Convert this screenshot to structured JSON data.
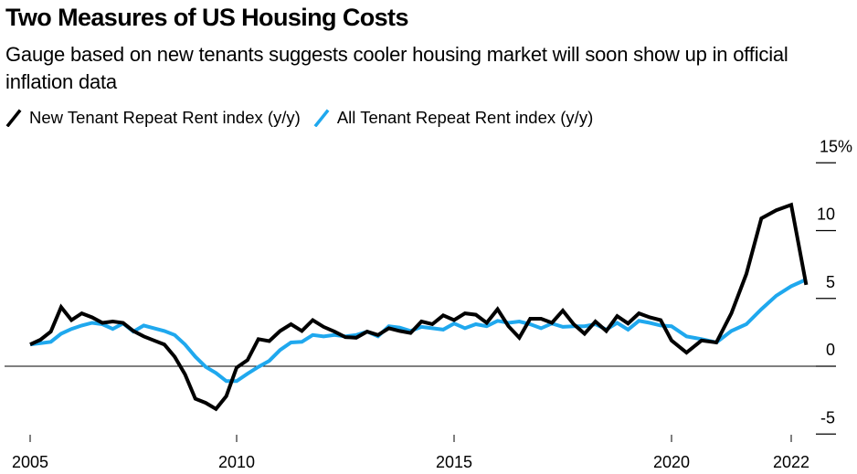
{
  "title": "Two Measures of US Housing Costs",
  "subtitle": "Gauge based on new tenants suggests cooler housing market will soon show up in official inflation data",
  "chart_data": {
    "type": "line",
    "title": "Two Measures of US Housing Costs",
    "subtitle": "Gauge based on new tenants suggests cooler housing market will soon show up in official inflation data",
    "xlabel": "",
    "ylabel": "",
    "x_ticks": [
      2005,
      2010,
      2015,
      2020,
      2022
    ],
    "x_tick_labels": [
      "2005",
      "2010",
      "2015",
      "2020",
      "2022"
    ],
    "y_ticks": [
      15,
      10,
      5,
      0,
      -5
    ],
    "y_tick_labels": [
      "15%",
      "10",
      "5",
      "0",
      "-5"
    ],
    "ylim": [
      -5,
      15
    ],
    "xlim": [
      2005,
      2022.25
    ],
    "y_axis_side": "right",
    "grid": false,
    "zero_line": true,
    "legend_position": "top-left",
    "x": [
      2005.0,
      2005.25,
      2005.5,
      2005.75,
      2006.0,
      2006.25,
      2006.5,
      2006.75,
      2007.0,
      2007.25,
      2007.5,
      2007.75,
      2008.0,
      2008.25,
      2008.5,
      2008.75,
      2009.0,
      2009.25,
      2009.5,
      2009.75,
      2010.0,
      2010.25,
      2010.5,
      2010.75,
      2011.0,
      2011.25,
      2011.5,
      2011.75,
      2012.0,
      2012.25,
      2012.5,
      2012.75,
      2013.0,
      2013.25,
      2013.5,
      2013.75,
      2014.0,
      2014.25,
      2014.5,
      2014.75,
      2015.0,
      2015.25,
      2015.5,
      2015.75,
      2016.0,
      2016.25,
      2016.5,
      2016.75,
      2017.0,
      2017.25,
      2017.5,
      2017.75,
      2018.0,
      2018.25,
      2018.5,
      2018.75,
      2019.0,
      2019.25,
      2019.5,
      2019.75,
      2020.0,
      2020.25,
      2020.5,
      2020.75,
      2021.0,
      2021.25,
      2021.5,
      2021.75,
      2022.0,
      2022.25
    ],
    "series": [
      {
        "name": "New Tenant Repeat Rent index (y/y)",
        "color": "#000000",
        "values": [
          1.6,
          1.95,
          2.55,
          4.36,
          3.4,
          3.9,
          3.6,
          3.2,
          3.3,
          3.2,
          2.6,
          2.2,
          1.9,
          1.6,
          0.7,
          -0.6,
          -2.4,
          -2.7,
          -3.15,
          -2.2,
          -0.1,
          0.45,
          2.0,
          1.85,
          2.6,
          3.1,
          2.6,
          3.4,
          2.9,
          2.55,
          2.15,
          2.1,
          2.55,
          2.3,
          2.8,
          2.6,
          2.45,
          3.3,
          3.1,
          3.75,
          3.4,
          3.9,
          3.8,
          3.2,
          4.2,
          2.95,
          2.1,
          3.5,
          3.5,
          3.2,
          4.1,
          3.1,
          2.4,
          3.3,
          2.6,
          3.7,
          3.15,
          3.9,
          3.6,
          3.4,
          1.9,
          1.0,
          1.9,
          1.75,
          3.9,
          6.8,
          10.9,
          11.5,
          11.9,
          6.0
        ]
      },
      {
        "name": "All Tenant Repeat Rent index (y/y)",
        "color": "#1fa8ee",
        "values": [
          1.6,
          1.7,
          1.8,
          2.4,
          2.75,
          3.0,
          3.2,
          3.1,
          2.75,
          3.15,
          2.55,
          3.0,
          2.8,
          2.6,
          2.3,
          1.6,
          0.7,
          -0.05,
          -0.5,
          -1.1,
          -1.1,
          -0.55,
          -0.05,
          0.4,
          1.2,
          1.75,
          1.8,
          2.3,
          2.2,
          2.3,
          2.2,
          2.3,
          2.55,
          2.2,
          2.95,
          2.85,
          2.6,
          2.9,
          2.8,
          2.7,
          3.15,
          2.8,
          3.1,
          2.95,
          3.35,
          3.2,
          3.3,
          3.1,
          2.8,
          3.15,
          2.9,
          2.95,
          2.95,
          3.1,
          2.7,
          3.2,
          2.7,
          3.35,
          3.2,
          3.0,
          2.95,
          2.2,
          2.0,
          1.75,
          2.6,
          3.1,
          4.2,
          5.2,
          5.9,
          6.4
        ]
      }
    ]
  }
}
